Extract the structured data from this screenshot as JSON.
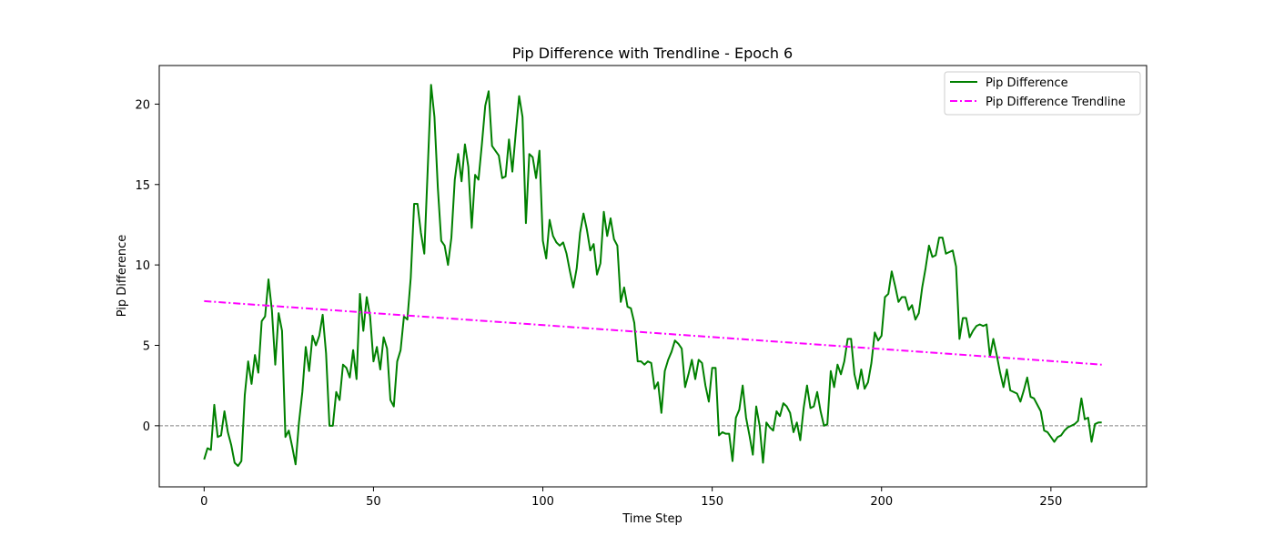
{
  "chart_data": {
    "type": "line",
    "title": "Pip Difference with Trendline - Epoch 6",
    "xlabel": "Time Step",
    "ylabel": "Pip Difference",
    "xlim": [
      -13.25,
      278.25
    ],
    "ylim": [
      -3.8,
      22.4
    ],
    "xticks": [
      0,
      50,
      100,
      150,
      200,
      250
    ],
    "yticks": [
      0,
      5,
      10,
      15,
      20
    ],
    "grid": false,
    "legend_position": "top-right",
    "reference_line": {
      "y": 0,
      "style": "dashed",
      "color": "#808080"
    },
    "series": [
      {
        "name": "Pip Difference",
        "color": "#008000",
        "style": "solid",
        "y": [
          -2.1,
          -1.4,
          -1.5,
          1.3,
          -0.7,
          -0.6,
          0.9,
          -0.4,
          -1.2,
          -2.3,
          -2.5,
          -2.2,
          1.9,
          4.0,
          2.6,
          4.4,
          3.3,
          6.5,
          6.8,
          9.1,
          7.2,
          3.8,
          7.0,
          5.9,
          -0.7,
          -0.3,
          -1.3,
          -2.4,
          0.2,
          2.1,
          4.9,
          3.4,
          5.6,
          5.0,
          5.6,
          6.9,
          4.5,
          0.0,
          0.0,
          2.1,
          1.6,
          3.8,
          3.6,
          3.0,
          4.7,
          2.9,
          8.2,
          5.9,
          8.0,
          6.8,
          4.0,
          4.9,
          3.5,
          5.5,
          4.8,
          1.6,
          1.2,
          4.0,
          4.7,
          6.8,
          6.6,
          9.2,
          13.8,
          13.8,
          12.0,
          10.7,
          15.9,
          21.2,
          19.2,
          14.8,
          11.5,
          11.2,
          10.0,
          11.7,
          15.3,
          16.9,
          15.2,
          17.5,
          16.1,
          12.3,
          15.6,
          15.3,
          17.5,
          19.9,
          20.8,
          17.4,
          17.1,
          16.8,
          15.4,
          15.5,
          17.8,
          15.8,
          18.2,
          20.5,
          19.2,
          12.6,
          16.9,
          16.7,
          15.4,
          17.1,
          11.5,
          10.4,
          12.8,
          11.8,
          11.4,
          11.2,
          11.4,
          10.7,
          9.6,
          8.6,
          9.8,
          12.0,
          13.2,
          12.2,
          10.9,
          11.3,
          9.4,
          10.1,
          13.3,
          11.8,
          12.9,
          11.6,
          11.2,
          7.7,
          8.6,
          7.4,
          7.3,
          6.4,
          4.0,
          4.0,
          3.8,
          4.0,
          3.9,
          2.3,
          2.7,
          0.8,
          3.4,
          4.1,
          4.6,
          5.3,
          5.1,
          4.8,
          2.4,
          3.2,
          4.1,
          2.9,
          4.1,
          3.9,
          2.5,
          1.5,
          3.6,
          3.6,
          -0.6,
          -0.4,
          -0.5,
          -0.5,
          -2.2,
          0.5,
          1.0,
          2.5,
          0.5,
          -0.6,
          -1.8,
          1.2,
          0.0,
          -2.3,
          0.2,
          -0.1,
          -0.3,
          0.9,
          0.6,
          1.4,
          1.2,
          0.8,
          -0.4,
          0.2,
          -0.9,
          1.1,
          2.5,
          1.1,
          1.2,
          2.1,
          0.9,
          0.0,
          0.1,
          3.4,
          2.4,
          3.8,
          3.2,
          4.0,
          5.4,
          5.4,
          3.2,
          2.3,
          3.5,
          2.3,
          2.7,
          3.9,
          5.8,
          5.3,
          5.6,
          8.0,
          8.2,
          9.6,
          8.7,
          7.7,
          8.0,
          8.0,
          7.2,
          7.5,
          6.6,
          7.0,
          8.6,
          9.8,
          11.2,
          10.5,
          10.6,
          11.7,
          11.7,
          10.7,
          10.8,
          10.9,
          9.9,
          5.4,
          6.7,
          6.7,
          5.5,
          5.9,
          6.2,
          6.3,
          6.2,
          6.3,
          4.3,
          5.4,
          4.4,
          3.3,
          2.4,
          3.5,
          2.2,
          2.1,
          2.0,
          1.5,
          2.2,
          3.0,
          1.8,
          1.7,
          1.3,
          0.9,
          -0.3,
          -0.4,
          -0.7,
          -1.0,
          -0.7,
          -0.6,
          -0.3,
          -0.1,
          0.0,
          0.1,
          0.3,
          1.7,
          0.4,
          0.5,
          -1.0,
          0.1,
          0.2,
          0.2
        ]
      },
      {
        "name": "Pip Difference Trendline",
        "color": "#ff00ff",
        "style": "dashdot",
        "x": [
          0,
          265
        ],
        "y": [
          7.75,
          3.8
        ]
      }
    ]
  }
}
